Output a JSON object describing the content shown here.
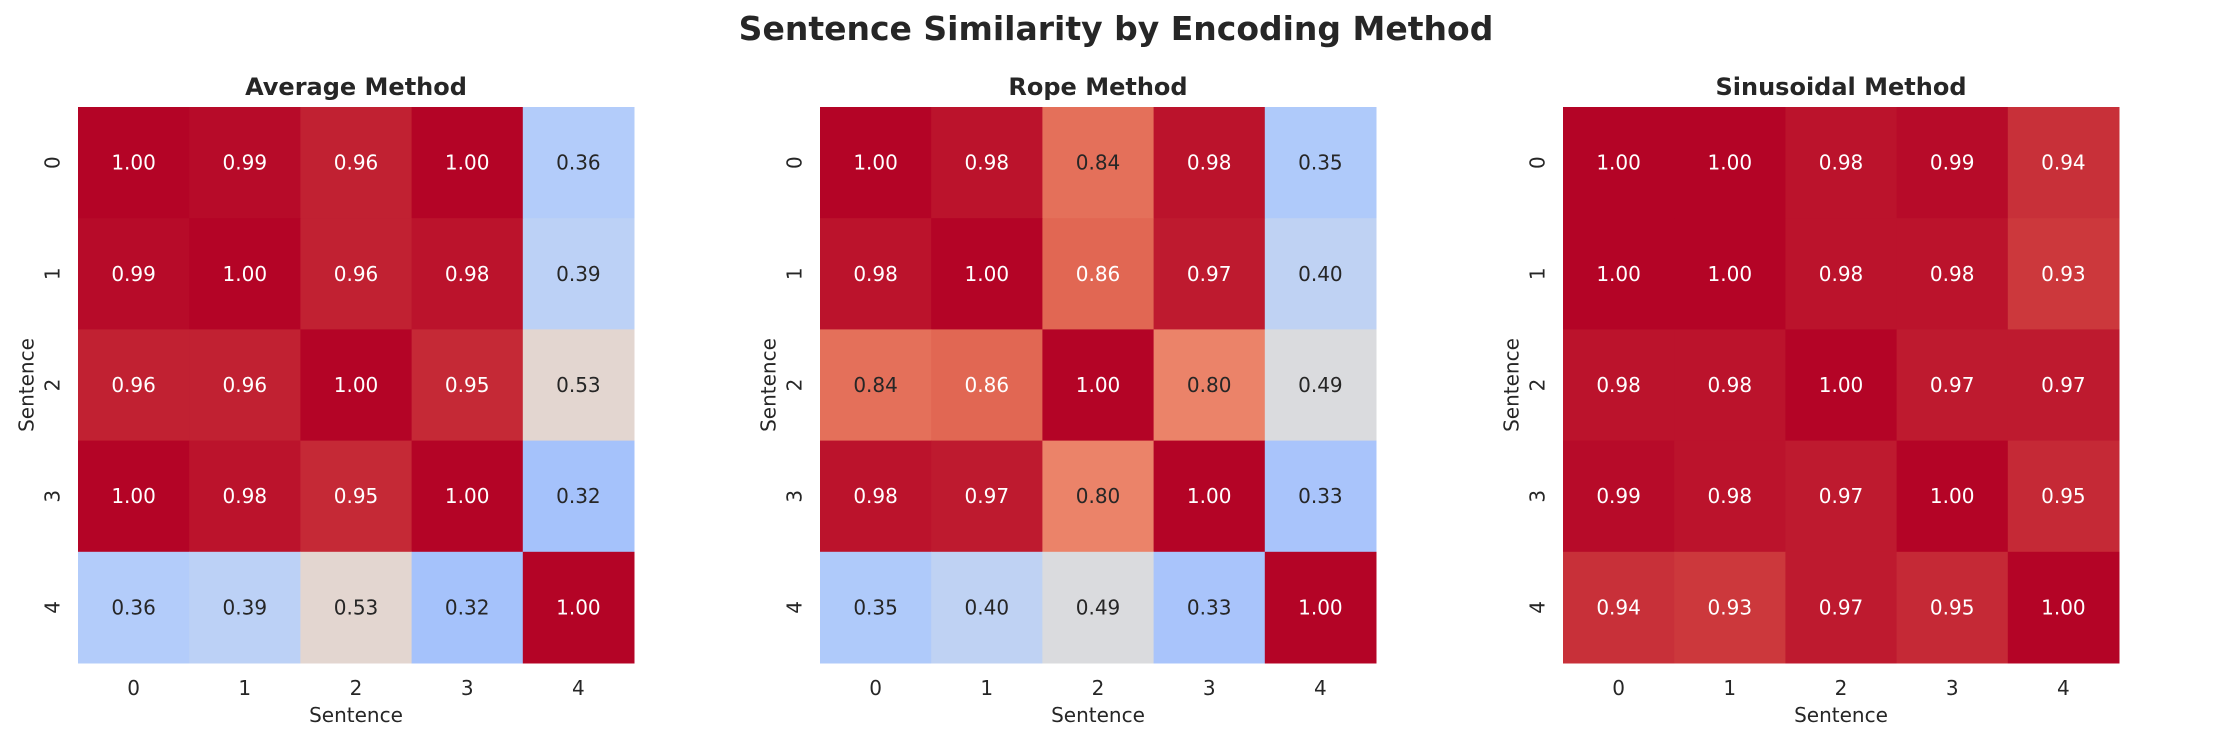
{
  "figure": {
    "title": "Sentence Similarity by Encoding Method"
  },
  "colormap": {
    "name": "coolwarm",
    "stops": [
      {
        "t": 0.0,
        "color": "#3b4cc0"
      },
      {
        "t": 0.125,
        "color": "#6282ea"
      },
      {
        "t": 0.25,
        "color": "#8db0fe"
      },
      {
        "t": 0.375,
        "color": "#b8d0f9"
      },
      {
        "t": 0.5,
        "color": "#dddcdc"
      },
      {
        "t": 0.625,
        "color": "#f5c4ac"
      },
      {
        "t": 0.75,
        "color": "#f49a7b"
      },
      {
        "t": 0.875,
        "color": "#de604d"
      },
      {
        "t": 1.0,
        "color": "#b40426"
      }
    ]
  },
  "chart_data": [
    {
      "type": "heatmap",
      "title": "Average Method",
      "xlabel": "Sentence",
      "ylabel": "Sentence",
      "x_ticks": [
        "0",
        "1",
        "2",
        "3",
        "4"
      ],
      "y_ticks": [
        "0",
        "1",
        "2",
        "3",
        "4"
      ],
      "vmin": 0.0,
      "vmax": 1.0,
      "values": [
        [
          1.0,
          0.99,
          0.96,
          1.0,
          0.36
        ],
        [
          0.99,
          1.0,
          0.96,
          0.98,
          0.39
        ],
        [
          0.96,
          0.96,
          1.0,
          0.95,
          0.53
        ],
        [
          1.0,
          0.98,
          0.95,
          1.0,
          0.32
        ],
        [
          0.36,
          0.39,
          0.53,
          0.32,
          1.0
        ]
      ]
    },
    {
      "type": "heatmap",
      "title": "Rope Method",
      "xlabel": "Sentence",
      "ylabel": "Sentence",
      "x_ticks": [
        "0",
        "1",
        "2",
        "3",
        "4"
      ],
      "y_ticks": [
        "0",
        "1",
        "2",
        "3",
        "4"
      ],
      "vmin": 0.0,
      "vmax": 1.0,
      "values": [
        [
          1.0,
          0.98,
          0.84,
          0.98,
          0.35
        ],
        [
          0.98,
          1.0,
          0.86,
          0.97,
          0.4
        ],
        [
          0.84,
          0.86,
          1.0,
          0.8,
          0.49
        ],
        [
          0.98,
          0.97,
          0.8,
          1.0,
          0.33
        ],
        [
          0.35,
          0.4,
          0.49,
          0.33,
          1.0
        ]
      ]
    },
    {
      "type": "heatmap",
      "title": "Sinusoidal Method",
      "xlabel": "Sentence",
      "ylabel": "Sentence",
      "x_ticks": [
        "0",
        "1",
        "2",
        "3",
        "4"
      ],
      "y_ticks": [
        "0",
        "1",
        "2",
        "3",
        "4"
      ],
      "vmin": 0.0,
      "vmax": 1.0,
      "values": [
        [
          1.0,
          1.0,
          0.98,
          0.99,
          0.94
        ],
        [
          1.0,
          1.0,
          0.98,
          0.98,
          0.93
        ],
        [
          0.98,
          0.98,
          1.0,
          0.97,
          0.97
        ],
        [
          0.99,
          0.98,
          0.97,
          1.0,
          0.95
        ],
        [
          0.94,
          0.93,
          0.97,
          0.95,
          1.0
        ]
      ]
    }
  ]
}
